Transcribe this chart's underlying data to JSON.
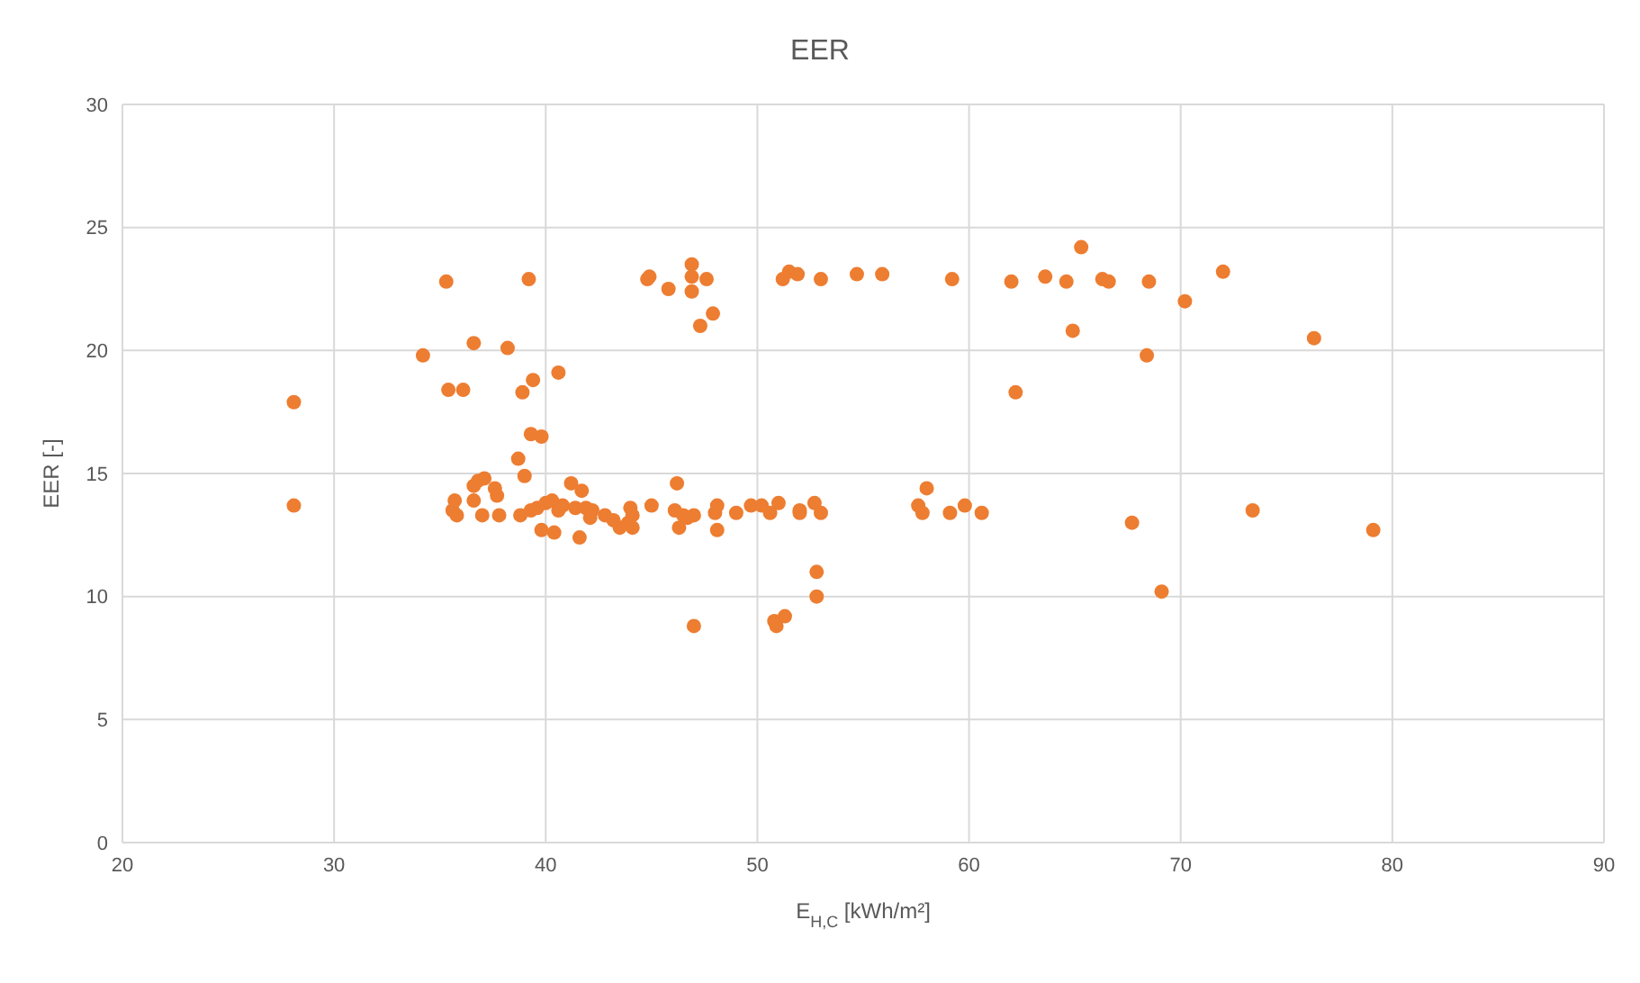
{
  "chart_data": {
    "type": "scatter",
    "title": "EER",
    "xlabel": "E$_{H,C}$ [kWh/m²]",
    "ylabel": "EER [-]",
    "color": "#ed7d31",
    "marker": "circle",
    "grid": true,
    "xlim": [
      20,
      90
    ],
    "xticks": [
      20,
      30,
      40,
      50,
      60,
      70,
      80,
      90
    ],
    "ylim": [
      0,
      30
    ],
    "yticks": [
      0,
      5,
      10,
      15,
      20,
      25,
      30
    ],
    "x": [
      28.1,
      28.1,
      34.2,
      35.3,
      35.4,
      35.6,
      35.7,
      35.8,
      36.1,
      36.6,
      36.6,
      36.6,
      36.8,
      37.0,
      37.1,
      37.6,
      37.7,
      37.8,
      38.2,
      38.7,
      38.8,
      38.9,
      39.0,
      39.2,
      39.3,
      39.3,
      39.4,
      39.6,
      39.8,
      39.8,
      40.0,
      40.3,
      40.4,
      40.6,
      40.6,
      40.8,
      41.2,
      41.4,
      41.6,
      41.7,
      41.9,
      42.1,
      42.2,
      42.8,
      43.2,
      43.5,
      43.9,
      44.0,
      44.1,
      44.1,
      44.8,
      44.9,
      45.0,
      45.8,
      46.1,
      46.2,
      46.3,
      46.5,
      46.7,
      46.9,
      46.9,
      46.9,
      47.0,
      47.0,
      47.3,
      47.6,
      47.9,
      48.0,
      48.1,
      48.1,
      49.0,
      49.7,
      50.2,
      50.6,
      50.8,
      50.9,
      51.0,
      51.2,
      51.3,
      51.5,
      51.9,
      52.0,
      52.0,
      52.7,
      52.8,
      52.8,
      53.0,
      53.0,
      54.7,
      55.9,
      57.6,
      57.8,
      58.0,
      59.1,
      59.2,
      59.8,
      60.6,
      62.0,
      62.2,
      63.6,
      64.6,
      64.9,
      65.3,
      66.3,
      66.6,
      67.7,
      68.4,
      68.5,
      69.1,
      70.2,
      72.0,
      73.4,
      76.3,
      79.1
    ],
    "values": [
      17.9,
      13.7,
      19.8,
      22.8,
      18.4,
      13.5,
      13.9,
      13.3,
      18.4,
      20.3,
      13.9,
      14.5,
      14.7,
      13.3,
      14.8,
      14.4,
      14.1,
      13.3,
      20.1,
      15.6,
      13.3,
      18.3,
      14.9,
      22.9,
      13.5,
      16.6,
      18.8,
      13.6,
      16.5,
      12.7,
      13.8,
      13.9,
      12.6,
      19.1,
      13.5,
      13.7,
      14.6,
      13.6,
      12.4,
      14.3,
      13.6,
      13.2,
      13.5,
      13.3,
      13.1,
      12.8,
      13.0,
      13.6,
      13.3,
      12.8,
      22.9,
      23.0,
      13.7,
      22.5,
      13.5,
      14.6,
      12.8,
      13.3,
      13.2,
      23.5,
      23.0,
      22.4,
      13.3,
      8.8,
      21.0,
      22.9,
      21.5,
      13.4,
      13.7,
      12.7,
      13.4,
      13.7,
      13.7,
      13.4,
      9.0,
      8.8,
      13.8,
      22.9,
      9.2,
      23.2,
      23.1,
      13.5,
      13.4,
      13.8,
      11.0,
      10.0,
      13.4,
      22.9,
      23.1,
      23.1,
      13.7,
      13.4,
      14.4,
      13.4,
      22.9,
      13.7,
      13.4,
      22.8,
      18.3,
      23.0,
      22.8,
      20.8,
      24.2,
      22.9,
      22.8,
      13.0,
      19.8,
      22.8,
      10.2,
      22.0,
      23.2,
      13.5,
      20.5,
      12.7
    ]
  }
}
